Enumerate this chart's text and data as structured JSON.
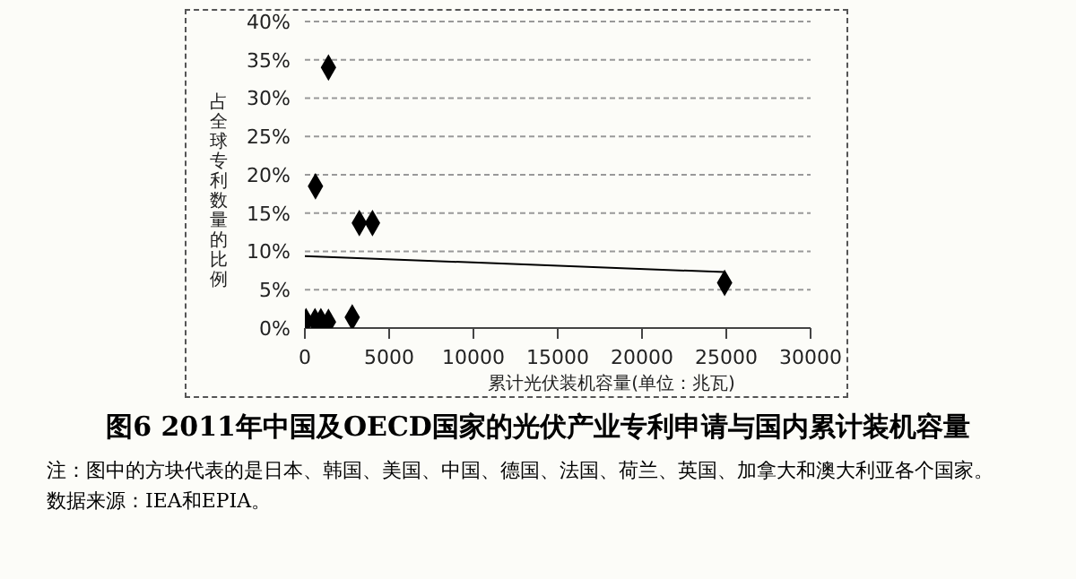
{
  "chart_data": {
    "type": "scatter",
    "title": "图6 2011年中国及OECD国家的光伏产业专利申请与国内累计装机容量",
    "xlabel": "累计光伏装机容量(单位：兆瓦)",
    "ylabel": "占全球专利数量的比例",
    "xlim": [
      0,
      30000
    ],
    "xticks": [
      0,
      5000,
      10000,
      15000,
      20000,
      25000,
      30000
    ],
    "ylim": [
      0,
      40
    ],
    "yticks": [
      {
        "value": 0,
        "label": "0%"
      },
      {
        "value": 5,
        "label": "5%"
      },
      {
        "value": 10,
        "label": "10%"
      },
      {
        "value": 15,
        "label": "15%"
      },
      {
        "value": 20,
        "label": "20%"
      },
      {
        "value": 25,
        "label": "25%"
      },
      {
        "value": 30,
        "label": "30%"
      },
      {
        "value": 35,
        "label": "35%"
      },
      {
        "value": 40,
        "label": "40%"
      }
    ],
    "grid": "y",
    "marker": "diamond",
    "series": [
      {
        "color": "#000000",
        "x": [
          1400,
          630,
          3230,
          4010,
          2810,
          24900,
          70,
          600,
          950,
          1400
        ],
        "values": [
          34,
          18.5,
          13.7,
          13.7,
          1.4,
          5.9,
          0.9,
          0.9,
          0.9,
          0.8
        ]
      },
      {
        "type": "line",
        "marker": "none",
        "color": "#000000",
        "x": [
          0,
          24900
        ],
        "values": [
          9.4,
          7.3
        ]
      }
    ],
    "annotations": [
      "注：图中的方块代表的是日本、韩国、美国、中国、德国、法国、荷兰、英国、加拿大和澳大利亚各个国家。",
      "数据来源：IEA和EPIA。"
    ]
  }
}
